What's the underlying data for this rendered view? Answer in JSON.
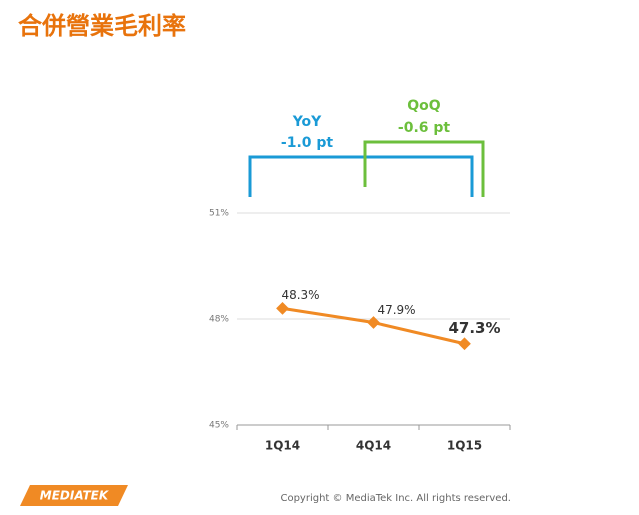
{
  "chart_data": {
    "type": "line",
    "title": "合併營業毛利率",
    "categories": [
      "1Q14",
      "4Q14",
      "1Q15"
    ],
    "values": [
      48.3,
      47.9,
      47.3
    ],
    "value_labels": [
      "48.3%",
      "47.9%",
      "47.3%"
    ],
    "color": "#f08a24",
    "ylim": [
      45,
      51
    ],
    "yticks": [
      {
        "value": 45,
        "label": "45%"
      },
      {
        "value": 48,
        "label": "48%"
      },
      {
        "value": 51,
        "label": "51%"
      }
    ],
    "grid": true,
    "annotations": [
      {
        "label": "YoY",
        "text": "-1.0 pt"
      },
      {
        "label": "QoQ",
        "text": "-0.6 pt"
      }
    ]
  },
  "footer": {
    "logo": "MEDIATEK",
    "copyright": "Copyright © MediaTek Inc. All rights reserved."
  }
}
